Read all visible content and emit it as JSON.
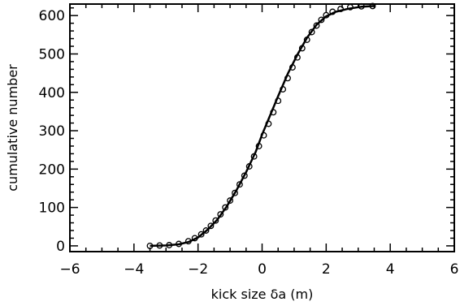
{
  "chart_data": {
    "type": "scatter",
    "title": "",
    "xlabel": "kick size δa (m)",
    "ylabel": "cumulative number",
    "xlim": [
      -6,
      6
    ],
    "ylim": [
      -15,
      630
    ],
    "x_ticks": [
      -6,
      -4,
      -2,
      0,
      2,
      4,
      6
    ],
    "x_tick_labels": [
      "−6",
      "−4",
      "−2",
      "0",
      "2",
      "4",
      "6"
    ],
    "y_ticks": [
      0,
      100,
      200,
      300,
      400,
      500,
      600
    ],
    "y_tick_labels": [
      "0",
      "100",
      "200",
      "300",
      "400",
      "500",
      "600"
    ],
    "grid": false,
    "series": [
      {
        "kind": "points",
        "marker": "open-circle",
        "points": [
          [
            -3.5,
            0
          ],
          [
            -3.2,
            1
          ],
          [
            -2.9,
            2
          ],
          [
            -2.6,
            5
          ],
          [
            -2.3,
            12
          ],
          [
            -2.1,
            20
          ],
          [
            -1.9,
            30
          ],
          [
            -1.75,
            40
          ],
          [
            -1.6,
            52
          ],
          [
            -1.45,
            66
          ],
          [
            -1.3,
            82
          ],
          [
            -1.15,
            100
          ],
          [
            -1.0,
            118
          ],
          [
            -0.85,
            138
          ],
          [
            -0.7,
            160
          ],
          [
            -0.55,
            183
          ],
          [
            -0.4,
            207
          ],
          [
            -0.25,
            233
          ],
          [
            -0.1,
            260
          ],
          [
            0.05,
            288
          ],
          [
            0.2,
            318
          ],
          [
            0.35,
            348
          ],
          [
            0.5,
            378
          ],
          [
            0.65,
            408
          ],
          [
            0.8,
            437
          ],
          [
            0.95,
            465
          ],
          [
            1.1,
            491
          ],
          [
            1.25,
            515
          ],
          [
            1.4,
            537
          ],
          [
            1.55,
            557
          ],
          [
            1.7,
            574
          ],
          [
            1.85,
            589
          ],
          [
            2.0,
            601
          ],
          [
            2.2,
            610
          ],
          [
            2.45,
            617
          ],
          [
            2.75,
            622
          ],
          [
            3.1,
            624
          ],
          [
            3.45,
            625
          ]
        ]
      },
      {
        "kind": "line",
        "points": [
          [
            -3.5,
            0
          ],
          [
            -3.0,
            1
          ],
          [
            -2.6,
            4
          ],
          [
            -2.3,
            10
          ],
          [
            -2.0,
            22
          ],
          [
            -1.7,
            42
          ],
          [
            -1.4,
            68
          ],
          [
            -1.1,
            103
          ],
          [
            -0.8,
            145
          ],
          [
            -0.5,
            192
          ],
          [
            -0.2,
            245
          ],
          [
            0.0,
            290
          ],
          [
            0.2,
            330
          ],
          [
            0.5,
            390
          ],
          [
            0.8,
            448
          ],
          [
            1.1,
            498
          ],
          [
            1.4,
            542
          ],
          [
            1.7,
            576
          ],
          [
            2.0,
            598
          ],
          [
            2.3,
            610
          ],
          [
            2.7,
            618
          ],
          [
            3.1,
            623
          ],
          [
            3.5,
            625
          ]
        ]
      }
    ]
  }
}
